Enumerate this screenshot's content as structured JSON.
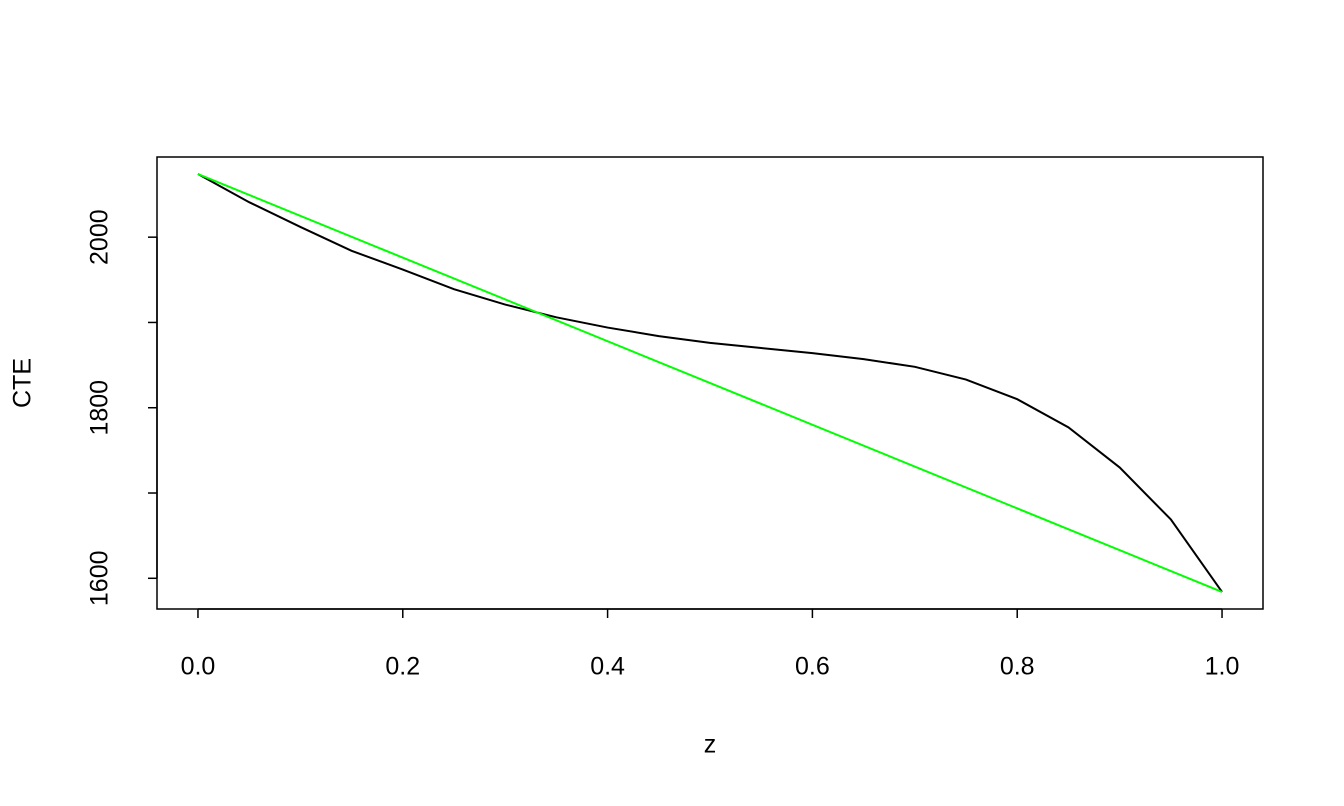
{
  "chart_data": {
    "type": "line",
    "x_label": "z",
    "y_label": "CTE",
    "xlim": [
      -0.04,
      1.04
    ],
    "ylim": [
      1564,
      2094
    ],
    "xticks": [
      {
        "value": 0,
        "label": "0.0"
      },
      0.2,
      0.4,
      0.6,
      0.8,
      {
        "value": 1,
        "label": "1.0"
      }
    ],
    "yticks": [
      1600,
      {
        "value": 1700,
        "label": null
      },
      1800,
      {
        "value": 1900,
        "label": null
      },
      2000
    ],
    "series": [
      {
        "color": "#000000",
        "x": [
          0,
          0.05,
          0.1,
          0.15,
          0.2,
          0.25,
          0.3,
          0.35,
          0.4,
          0.45,
          0.5,
          0.55,
          0.6,
          0.65,
          0.7,
          0.75,
          0.8,
          0.85,
          0.9,
          0.95,
          1
        ],
        "values": [
          2074,
          2041,
          2012,
          1984,
          1962,
          1939,
          1921,
          1906,
          1894,
          1884,
          1876,
          1870,
          1864,
          1857,
          1848,
          1833,
          1810,
          1777,
          1730,
          1669,
          1584
        ]
      },
      {
        "color": "#00ff00",
        "x": [
          0,
          1
        ],
        "values": [
          2074,
          1584
        ]
      }
    ]
  }
}
